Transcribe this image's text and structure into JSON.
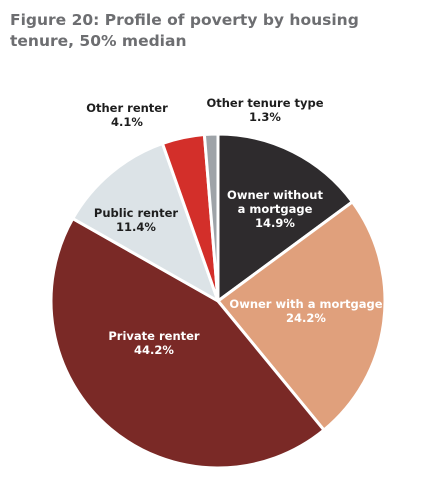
{
  "figure": {
    "title": "Figure 20: Profile of poverty by housing tenure, 50% median"
  },
  "chart_data": {
    "type": "pie",
    "title": "Figure 20: Profile of poverty by housing tenure, 50% median",
    "slices": [
      {
        "label": "Owner without a mortgage",
        "value": 14.9,
        "display": "14.9%",
        "color": "#2e2b2d"
      },
      {
        "label": "Owner with a mortgage",
        "value": 24.2,
        "display": "24.2%",
        "color": "#e0a07c"
      },
      {
        "label": "Private renter",
        "value": 44.2,
        "display": "44.2%",
        "color": "#7a2926"
      },
      {
        "label": "Public renter",
        "value": 11.4,
        "display": "11.4%",
        "color": "#dce3e7"
      },
      {
        "label": "Other renter",
        "value": 4.1,
        "display": "4.1%",
        "color": "#d32f2a"
      },
      {
        "label": "Other tenure type",
        "value": 1.3,
        "display": "1.3%",
        "color": "#9ea3a8"
      }
    ]
  }
}
